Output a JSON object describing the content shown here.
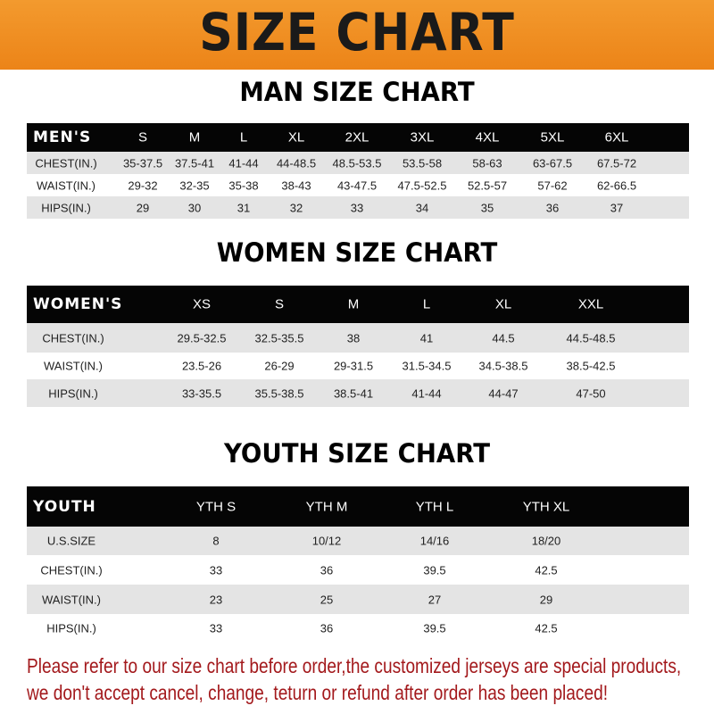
{
  "banner": {
    "title": "SIZE CHART",
    "color": "#ee8a1f"
  },
  "men": {
    "title": "MAN SIZE CHART",
    "header": [
      "MEN'S",
      "S",
      "M",
      "L",
      "XL",
      "2XL",
      "3XL",
      "4XL",
      "5XL",
      "6XL"
    ],
    "rows": [
      [
        "CHEST(IN.)",
        "35-37.5",
        "37.5-41",
        "41-44",
        "44-48.5",
        "48.5-53.5",
        "53.5-58",
        "58-63",
        "63-67.5",
        "67.5-72"
      ],
      [
        "WAIST(IN.)",
        "29-32",
        "32-35",
        "35-38",
        "38-43",
        "43-47.5",
        "47.5-52.5",
        "52.5-57",
        "57-62",
        "62-66.5"
      ],
      [
        "HIPS(IN.)",
        "29",
        "30",
        "31",
        "32",
        "33",
        "34",
        "35",
        "36",
        "37"
      ]
    ]
  },
  "women": {
    "title": "WOMEN SIZE CHART",
    "header": [
      "WOMEN'S",
      "XS",
      "S",
      "M",
      "L",
      "XL",
      "XXL"
    ],
    "rows": [
      [
        "CHEST(IN.)",
        "29.5-32.5",
        "32.5-35.5",
        "38",
        "41",
        "44.5",
        "44.5-48.5"
      ],
      [
        "WAIST(IN.)",
        "23.5-26",
        "26-29",
        "29-31.5",
        "31.5-34.5",
        "34.5-38.5",
        "38.5-42.5"
      ],
      [
        "HIPS(IN.)",
        "33-35.5",
        "35.5-38.5",
        "38.5-41",
        "41-44",
        "44-47",
        "47-50"
      ]
    ]
  },
  "youth": {
    "title": "YOUTH SIZE CHART",
    "header": [
      "YOUTH",
      "YTH S",
      "YTH M",
      "YTH L",
      "YTH XL"
    ],
    "rows": [
      [
        "U.S.SIZE",
        "8",
        "10/12",
        "14/16",
        "18/20"
      ],
      [
        "CHEST(IN.)",
        "33",
        "36",
        "39.5",
        "42.5"
      ],
      [
        "WAIST(IN.)",
        "23",
        "25",
        "27",
        "29"
      ],
      [
        "HIPS(IN.)",
        "33",
        "36",
        "39.5",
        "42.5"
      ]
    ]
  },
  "notice": {
    "line1": "Please refer to our size chart before order,the customized jerseys are special products,",
    "line2": "we don't accept cancel, change, teturn or refund after order has been placed!",
    "color": "#a3191c"
  }
}
